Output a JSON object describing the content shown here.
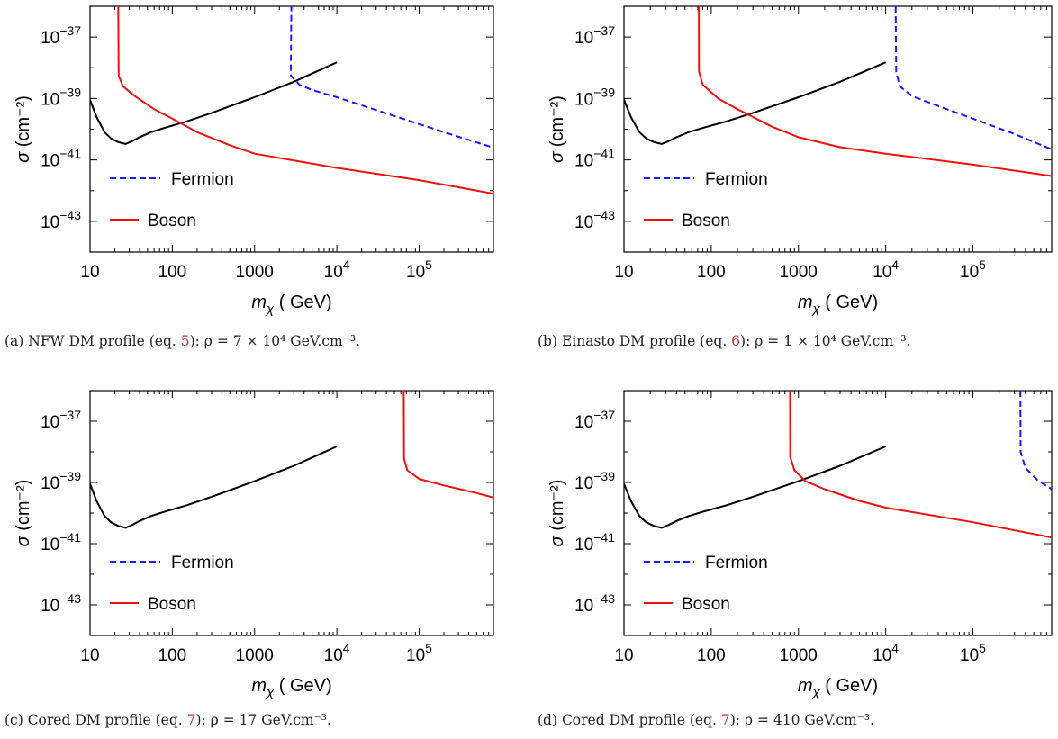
{
  "colors": {
    "fermion": "#1a1aff",
    "boson": "#ee1111",
    "limit": "#000000",
    "ref": "#c0392b"
  },
  "chart_data": [
    {
      "type": "line",
      "log_x": true,
      "log_y": true,
      "xlim": [
        10,
        800000
      ],
      "ylim": [
        1e-44,
        1e-36
      ],
      "xlabel": "m_χ ( GeV)",
      "ylabel": "σ (cm⁻²)",
      "x_ticks": [
        {
          "v": 10,
          "m": "10"
        },
        {
          "v": 100,
          "m": "100"
        },
        {
          "v": 1000,
          "m": "1000"
        },
        {
          "v": 10000,
          "m": "10",
          "e": "4"
        },
        {
          "v": 100000,
          "m": "10",
          "e": "5"
        }
      ],
      "y_ticks": [
        {
          "v": 1e-37,
          "m": "10",
          "e": "−37"
        },
        {
          "v": 1e-39,
          "m": "10",
          "e": "−39"
        },
        {
          "v": 1e-41,
          "m": "10",
          "e": "−41"
        },
        {
          "v": 1e-43,
          "m": "10",
          "e": "−43"
        }
      ],
      "legend": [
        "Fermion",
        "Boson"
      ],
      "legend_position": "bottom-left",
      "caption": {
        "pre": "(a) NFW DM profile (eq. ",
        "ref": "5",
        "post": "): ρ = 7 × 10⁴ GeV.cm⁻³."
      },
      "series": [
        {
          "name": "Limit",
          "style": "limit",
          "points": [
            [
              10,
              9e-40
            ],
            [
              12,
              2.5e-40
            ],
            [
              15,
              8e-41
            ],
            [
              18,
              5e-41
            ],
            [
              22,
              3.8e-41
            ],
            [
              27,
              3.3e-41
            ],
            [
              32,
              4e-41
            ],
            [
              40,
              5.5e-41
            ],
            [
              55,
              8e-41
            ],
            [
              80,
              1.1e-40
            ],
            [
              150,
              1.8e-40
            ],
            [
              300,
              3.4e-40
            ],
            [
              1000,
              1.1e-39
            ],
            [
              3000,
              3.5e-39
            ],
            [
              10000,
              1.5e-38
            ]
          ]
        },
        {
          "name": "Fermion",
          "style": "fermion",
          "points": [
            [
              2800,
              1.1e-36
            ],
            [
              2750,
              5.6e-39
            ],
            [
              3500,
              2.8e-39
            ],
            [
              5000,
              1.9e-39
            ],
            [
              10000,
              1.1e-39
            ],
            [
              50000,
              2.7e-40
            ],
            [
              200000,
              8e-41
            ],
            [
              800000,
              2.5e-41
            ]
          ]
        },
        {
          "name": "Boson",
          "style": "boson",
          "points": [
            [
              22,
              1e-36
            ],
            [
              22.3,
              5.6e-39
            ],
            [
              25,
              2.5e-39
            ],
            [
              35,
              1.2e-39
            ],
            [
              60,
              4.5e-40
            ],
            [
              100,
              2.2e-40
            ],
            [
              200,
              8e-41
            ],
            [
              500,
              3e-41
            ],
            [
              1000,
              1.6e-41
            ],
            [
              10000,
              5.5e-42
            ],
            [
              100000,
              2.2e-42
            ],
            [
              800000,
              8e-43
            ]
          ]
        }
      ]
    },
    {
      "type": "line",
      "log_x": true,
      "log_y": true,
      "xlim": [
        10,
        800000
      ],
      "ylim": [
        1e-44,
        1e-36
      ],
      "xlabel": "m_χ ( GeV)",
      "ylabel": "σ (cm⁻²)",
      "x_ticks": [
        {
          "v": 10,
          "m": "10"
        },
        {
          "v": 100,
          "m": "100"
        },
        {
          "v": 1000,
          "m": "1000"
        },
        {
          "v": 10000,
          "m": "10",
          "e": "4"
        },
        {
          "v": 100000,
          "m": "10",
          "e": "5"
        }
      ],
      "y_ticks": [
        {
          "v": 1e-37,
          "m": "10",
          "e": "−37"
        },
        {
          "v": 1e-39,
          "m": "10",
          "e": "−39"
        },
        {
          "v": 1e-41,
          "m": "10",
          "e": "−41"
        },
        {
          "v": 1e-43,
          "m": "10",
          "e": "−43"
        }
      ],
      "legend": [
        "Fermion",
        "Boson"
      ],
      "legend_position": "bottom-left",
      "caption": {
        "pre": "(b) Einasto DM profile (eq. ",
        "ref": "6",
        "post": "): ρ = 1 × 10⁴ GeV.cm⁻³."
      },
      "series": [
        {
          "name": "Limit",
          "style": "limit",
          "points": [
            [
              10,
              9e-40
            ],
            [
              12,
              2.5e-40
            ],
            [
              15,
              8e-41
            ],
            [
              18,
              5e-41
            ],
            [
              22,
              3.8e-41
            ],
            [
              27,
              3.3e-41
            ],
            [
              32,
              4e-41
            ],
            [
              40,
              5.5e-41
            ],
            [
              55,
              8e-41
            ],
            [
              80,
              1.1e-40
            ],
            [
              150,
              1.8e-40
            ],
            [
              300,
              3.4e-40
            ],
            [
              1000,
              1.1e-39
            ],
            [
              3000,
              3.5e-39
            ],
            [
              10000,
              1.5e-38
            ]
          ]
        },
        {
          "name": "Fermion",
          "style": "fermion",
          "points": [
            [
              13000,
              1e-36
            ],
            [
              13200,
              7.5e-39
            ],
            [
              14500,
              2.5e-39
            ],
            [
              20000,
              1.2e-39
            ],
            [
              50000,
              4.5e-40
            ],
            [
              100000,
              2.2e-40
            ],
            [
              300000,
              7e-41
            ],
            [
              800000,
              2.2e-41
            ]
          ]
        },
        {
          "name": "Boson",
          "style": "boson",
          "points": [
            [
              72,
              1e-36
            ],
            [
              72.4,
              7.5e-39
            ],
            [
              80,
              2.8e-39
            ],
            [
              120,
              1e-39
            ],
            [
              200,
              4.5e-40
            ],
            [
              500,
              1.2e-40
            ],
            [
              1000,
              5.5e-41
            ],
            [
              3000,
              2.6e-41
            ],
            [
              10000,
              1.6e-41
            ],
            [
              100000,
              7e-42
            ],
            [
              800000,
              3e-42
            ]
          ]
        }
      ]
    },
    {
      "type": "line",
      "log_x": true,
      "log_y": true,
      "xlim": [
        10,
        800000
      ],
      "ylim": [
        1e-44,
        1e-36
      ],
      "xlabel": "m_χ ( GeV)",
      "ylabel": "σ (cm⁻²)",
      "x_ticks": [
        {
          "v": 10,
          "m": "10"
        },
        {
          "v": 100,
          "m": "100"
        },
        {
          "v": 1000,
          "m": "1000"
        },
        {
          "v": 10000,
          "m": "10",
          "e": "4"
        },
        {
          "v": 100000,
          "m": "10",
          "e": "5"
        }
      ],
      "y_ticks": [
        {
          "v": 1e-37,
          "m": "10",
          "e": "−37"
        },
        {
          "v": 1e-39,
          "m": "10",
          "e": "−39"
        },
        {
          "v": 1e-41,
          "m": "10",
          "e": "−41"
        },
        {
          "v": 1e-43,
          "m": "10",
          "e": "−43"
        }
      ],
      "legend": [
        "Fermion",
        "Boson"
      ],
      "legend_position": "bottom-left",
      "caption": {
        "pre": "(c) Cored DM profile (eq. ",
        "ref": "7",
        "post": "): ρ = 17 GeV.cm⁻³."
      },
      "series": [
        {
          "name": "Limit",
          "style": "limit",
          "points": [
            [
              10,
              9e-40
            ],
            [
              12,
              2.5e-40
            ],
            [
              15,
              8e-41
            ],
            [
              18,
              5e-41
            ],
            [
              22,
              3.8e-41
            ],
            [
              27,
              3.3e-41
            ],
            [
              32,
              4e-41
            ],
            [
              40,
              5.5e-41
            ],
            [
              55,
              8e-41
            ],
            [
              80,
              1.1e-40
            ],
            [
              150,
              1.8e-40
            ],
            [
              300,
              3.4e-40
            ],
            [
              1000,
              1.1e-39
            ],
            [
              3000,
              3.5e-39
            ],
            [
              10000,
              1.5e-38
            ]
          ]
        },
        {
          "name": "Boson",
          "style": "boson",
          "points": [
            [
              65000,
              1e-36
            ],
            [
              65500,
              6e-39
            ],
            [
              72000,
              2.5e-39
            ],
            [
              100000,
              1.3e-39
            ],
            [
              200000,
              8e-40
            ],
            [
              500000,
              4.5e-40
            ],
            [
              800000,
              3.2e-40
            ]
          ]
        }
      ]
    },
    {
      "type": "line",
      "log_x": true,
      "log_y": true,
      "xlim": [
        10,
        800000
      ],
      "ylim": [
        1e-44,
        1e-36
      ],
      "xlabel": "m_χ ( GeV)",
      "ylabel": "σ (cm⁻²)",
      "x_ticks": [
        {
          "v": 10,
          "m": "10"
        },
        {
          "v": 100,
          "m": "100"
        },
        {
          "v": 1000,
          "m": "1000"
        },
        {
          "v": 10000,
          "m": "10",
          "e": "4"
        },
        {
          "v": 100000,
          "m": "10",
          "e": "5"
        }
      ],
      "y_ticks": [
        {
          "v": 1e-37,
          "m": "10",
          "e": "−37"
        },
        {
          "v": 1e-39,
          "m": "10",
          "e": "−39"
        },
        {
          "v": 1e-41,
          "m": "10",
          "e": "−41"
        },
        {
          "v": 1e-43,
          "m": "10",
          "e": "−43"
        }
      ],
      "legend": [
        "Fermion",
        "Boson"
      ],
      "legend_position": "bottom-left",
      "caption": {
        "pre": "(d) Cored DM profile (eq. ",
        "ref": "7",
        "post": "): ρ = 410 GeV.cm⁻³."
      },
      "series": [
        {
          "name": "Limit",
          "style": "limit",
          "points": [
            [
              10,
              9e-40
            ],
            [
              12,
              2.5e-40
            ],
            [
              15,
              8e-41
            ],
            [
              18,
              5e-41
            ],
            [
              22,
              3.8e-41
            ],
            [
              27,
              3.3e-41
            ],
            [
              32,
              4e-41
            ],
            [
              40,
              5.5e-41
            ],
            [
              55,
              8e-41
            ],
            [
              80,
              1.1e-40
            ],
            [
              150,
              1.8e-40
            ],
            [
              300,
              3.4e-40
            ],
            [
              1000,
              1.1e-39
            ],
            [
              3000,
              3.5e-39
            ],
            [
              10000,
              1.5e-38
            ]
          ]
        },
        {
          "name": "Fermion",
          "style": "fermion",
          "points": [
            [
              350000,
              1e-36
            ],
            [
              352000,
              1e-38
            ],
            [
              400000,
              3e-39
            ],
            [
              550000,
              1.2e-39
            ],
            [
              800000,
              6e-40
            ]
          ]
        },
        {
          "name": "Boson",
          "style": "boson",
          "points": [
            [
              800,
              1e-36
            ],
            [
              805,
              7e-39
            ],
            [
              900,
              2.5e-39
            ],
            [
              1200,
              1.1e-39
            ],
            [
              2000,
              6e-40
            ],
            [
              5000,
              2.5e-40
            ],
            [
              10000,
              1.5e-40
            ],
            [
              100000,
              5e-41
            ],
            [
              800000,
              1.6e-41
            ]
          ]
        }
      ]
    }
  ]
}
